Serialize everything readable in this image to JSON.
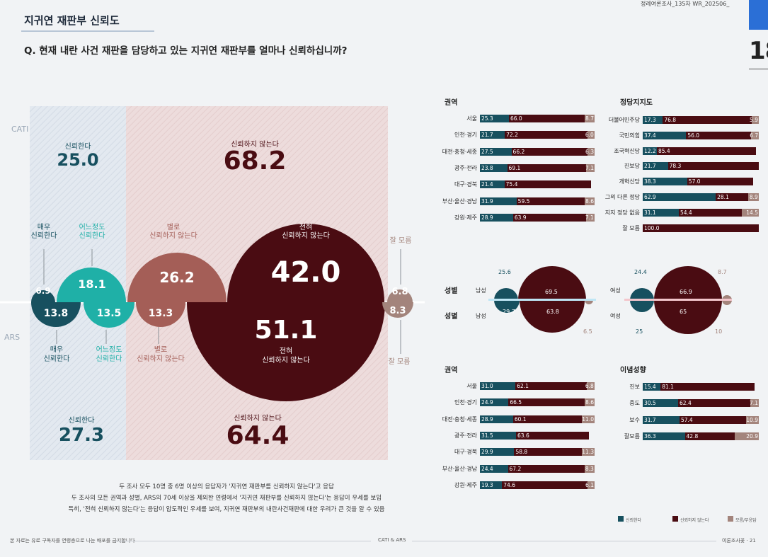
{
  "header": {
    "section_title": "지귀연 재판부 신뢰도",
    "question": "Q. 현재 내란 사건 재판을 담당하고 있는 지귀연 재판부를 얼마나 신뢰하십니까?",
    "tag": "정례여론조사_135차  WR_202506_",
    "page_number": "18"
  },
  "colors": {
    "trust": "#17505f",
    "trust_light": "#1fb0a7",
    "distrust_mild": "#a45e57",
    "distrust": "#4a0c12",
    "unknown": "#a3847c"
  },
  "main_chart": {
    "method_cati": "CATI",
    "method_ars": "ARS",
    "cati": {
      "trust_label": "신뢰한다",
      "trust_total": "25.0",
      "distrust_label": "신뢰하지 않는다",
      "distrust_total": "68.2",
      "very_trust_label": "매우\n신뢰한다",
      "very_trust": "6.9",
      "some_trust_label": "어느정도\n신뢰한다",
      "some_trust": "18.1",
      "not_much_label": "별로\n신뢰하지 않는다",
      "not_much": "26.2",
      "not_at_all_label": "전혀\n신뢰하지 않는다",
      "not_at_all": "42.0",
      "unknown_label": "잘 모름",
      "unknown": "6.8"
    },
    "ars": {
      "trust_label": "신뢰한다",
      "trust_total": "27.3",
      "distrust_label": "신뢰하지 않는다",
      "distrust_total": "64.4",
      "very_trust_label": "매우\n신뢰한다",
      "very_trust": "13.8",
      "some_trust_label": "어느정도\n신뢰한다",
      "some_trust": "13.5",
      "not_much_label": "별로\n신뢰하지 않는다",
      "not_much": "13.3",
      "not_at_all_label": "전혀\n신뢰하지 않는다",
      "not_at_all": "51.1",
      "unknown_label": "잘 모름",
      "unknown": "8.3"
    }
  },
  "chart_data": [
    {
      "type": "bar",
      "title": "권역",
      "categories": [
        "서울",
        "인천·경기",
        "대전·충청·세종",
        "광주·전라",
        "대구·경북",
        "부산·울산·경남",
        "강원·제주"
      ],
      "series": [
        {
          "name": "신뢰한다",
          "values": [
            25.3,
            21.7,
            27.5,
            23.8,
            21.4,
            31.9,
            28.9
          ]
        },
        {
          "name": "신뢰하지 않는다",
          "values": [
            66.0,
            72.2,
            66.2,
            69.1,
            75.4,
            59.5,
            63.9
          ]
        },
        {
          "name": "모름/무응답",
          "values": [
            8.7,
            6.0,
            6.3,
            7.1,
            null,
            8.6,
            7.1
          ]
        }
      ]
    },
    {
      "type": "bar",
      "title": "정당지지도",
      "categories": [
        "더불어민주당",
        "국민의힘",
        "조국혁신당",
        "진보당",
        "개혁신당",
        "그외 다른 정당",
        "지지 정당 없음",
        "잘 모름"
      ],
      "series": [
        {
          "name": "신뢰한다",
          "values": [
            17.3,
            37.4,
            12.2,
            21.7,
            38.3,
            62.9,
            31.1,
            null
          ]
        },
        {
          "name": "신뢰하지 않는다",
          "values": [
            76.8,
            56.0,
            85.4,
            78.3,
            57.0,
            28.1,
            54.4,
            100.0
          ]
        },
        {
          "name": "모름/무응답",
          "values": [
            5.9,
            6.7,
            null,
            null,
            null,
            8.9,
            14.5,
            null
          ]
        }
      ]
    },
    {
      "type": "scatter",
      "title": "성별",
      "categories": [
        "남성 (CATI)",
        "남성 (ARS)"
      ],
      "series": [
        {
          "name": "신뢰한다",
          "values": [
            25.6,
            29.7
          ]
        },
        {
          "name": "신뢰하지 않는다",
          "values": [
            69.5,
            63.8
          ]
        },
        {
          "name": "모름/무응답",
          "values": [
            null,
            6.5
          ]
        }
      ]
    },
    {
      "type": "scatter",
      "title": "여성",
      "categories": [
        "여성 (CATI)",
        "여성 (ARS)"
      ],
      "series": [
        {
          "name": "신뢰한다",
          "values": [
            24.4,
            25.0
          ]
        },
        {
          "name": "신뢰하지 않는다",
          "values": [
            66.9,
            65.0
          ]
        },
        {
          "name": "모름/무응답",
          "values": [
            8.7,
            10.0
          ]
        }
      ]
    },
    {
      "type": "bar",
      "title": "권역",
      "categories": [
        "서울",
        "인천·경기",
        "대전·충청·세종",
        "광주·전라",
        "대구·경북",
        "부산·울산·경남",
        "강원·제주"
      ],
      "series": [
        {
          "name": "신뢰한다",
          "values": [
            31.0,
            24.9,
            28.9,
            31.5,
            29.9,
            24.4,
            19.3
          ]
        },
        {
          "name": "신뢰하지 않는다",
          "values": [
            62.1,
            66.5,
            60.1,
            63.6,
            58.8,
            67.2,
            74.6
          ]
        },
        {
          "name": "모름/무응답",
          "values": [
            6.8,
            8.6,
            11.0,
            null,
            11.3,
            8.3,
            6.1
          ]
        }
      ]
    },
    {
      "type": "bar",
      "title": "이념성향",
      "categories": [
        "진보",
        "중도",
        "보수",
        "잘모름"
      ],
      "series": [
        {
          "name": "신뢰한다",
          "values": [
            15.4,
            30.5,
            31.7,
            36.3
          ]
        },
        {
          "name": "신뢰하지 않는다",
          "values": [
            81.1,
            62.4,
            57.4,
            42.8
          ]
        },
        {
          "name": "모름/무응답",
          "values": [
            null,
            7.1,
            10.9,
            20.9
          ]
        }
      ]
    }
  ],
  "gender": {
    "cati_label": "성별",
    "ars_label": "성별",
    "male": "남성",
    "female": "여성"
  },
  "legend": [
    "신뢰한다",
    "신뢰하지 않는다",
    "모름/무응답"
  ],
  "summary": [
    "두 조사 모두 10명 중 6명 이상의 응답자가 '지귀연 재판부를 신뢰하지 않는다'고 응답",
    "두 조사의 모든 권역과 성별, ARS의 70세 이상을 제외한 연령에서 '지귀연 재판부를 신뢰하지 않는다'는 응답이 우세를 보임",
    "특히, '전혀 신뢰하지 않는다'는 응답이 압도적인 우세를 보여, 지귀연 재판부의 내란사건재판에 대한 우려가 큰 것을 알 수 있음"
  ],
  "footer": {
    "left": "본 자료는 유료 구독자를 연령층으로 나눈 배포를 금지합니다",
    "center": "CATI & ARS",
    "right": "여론조사꽃 · 21"
  }
}
